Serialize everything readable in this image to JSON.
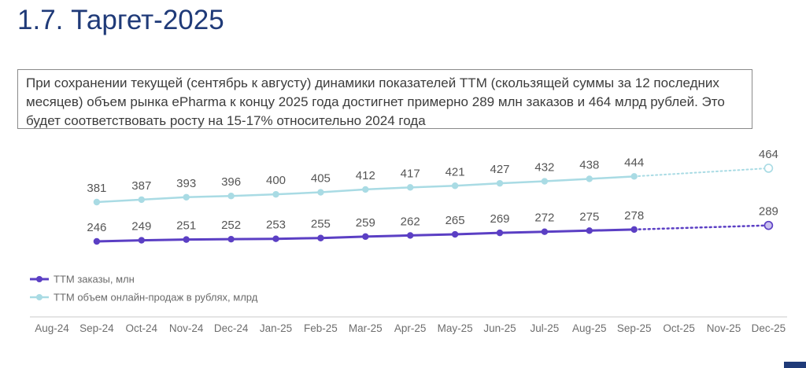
{
  "slide": {
    "title": "1.7. Таргет-2025",
    "description": "При сохранении текущей (сентябрь к августу) динамики показателей ТТМ (скользящей суммы за 12 последних месяцев) объем рынка ePharma к концу 2025 года достигнет примерно 289 млн заказов и 464 млрд рублей. Это будет соответствовать росту на 15-17% относительно 2024 года"
  },
  "chart_data": {
    "type": "line",
    "categories": [
      "Aug-24",
      "Sep-24",
      "Oct-24",
      "Nov-24",
      "Dec-24",
      "Jan-25",
      "Feb-25",
      "Mar-25",
      "Apr-25",
      "May-25",
      "Jun-25",
      "Jul-25",
      "Aug-25",
      "Sep-25",
      "Oct-25",
      "Nov-25",
      "Dec-25"
    ],
    "series": [
      {
        "name": "TTM заказы, млн",
        "color": "#5b3fc4",
        "actual": [
          [
            1,
            246
          ],
          [
            2,
            249
          ],
          [
            3,
            251
          ],
          [
            4,
            252
          ],
          [
            5,
            253
          ],
          [
            6,
            255
          ],
          [
            7,
            259
          ],
          [
            8,
            262
          ],
          [
            9,
            265
          ],
          [
            10,
            269
          ],
          [
            11,
            272
          ],
          [
            12,
            275
          ],
          [
            13,
            278
          ]
        ],
        "forecast": [
          [
            16,
            289
          ]
        ]
      },
      {
        "name": "TTM объем онлайн-продаж в рублях, млрд",
        "color": "#a9dbe4",
        "actual": [
          [
            1,
            381
          ],
          [
            2,
            387
          ],
          [
            3,
            393
          ],
          [
            4,
            396
          ],
          [
            5,
            400
          ],
          [
            6,
            405
          ],
          [
            7,
            412
          ],
          [
            8,
            417
          ],
          [
            9,
            421
          ],
          [
            10,
            427
          ],
          [
            11,
            432
          ],
          [
            12,
            438
          ],
          [
            13,
            444
          ]
        ],
        "forecast": [
          [
            16,
            464
          ]
        ]
      }
    ],
    "legend_position": "bottom-left",
    "grid": false
  }
}
